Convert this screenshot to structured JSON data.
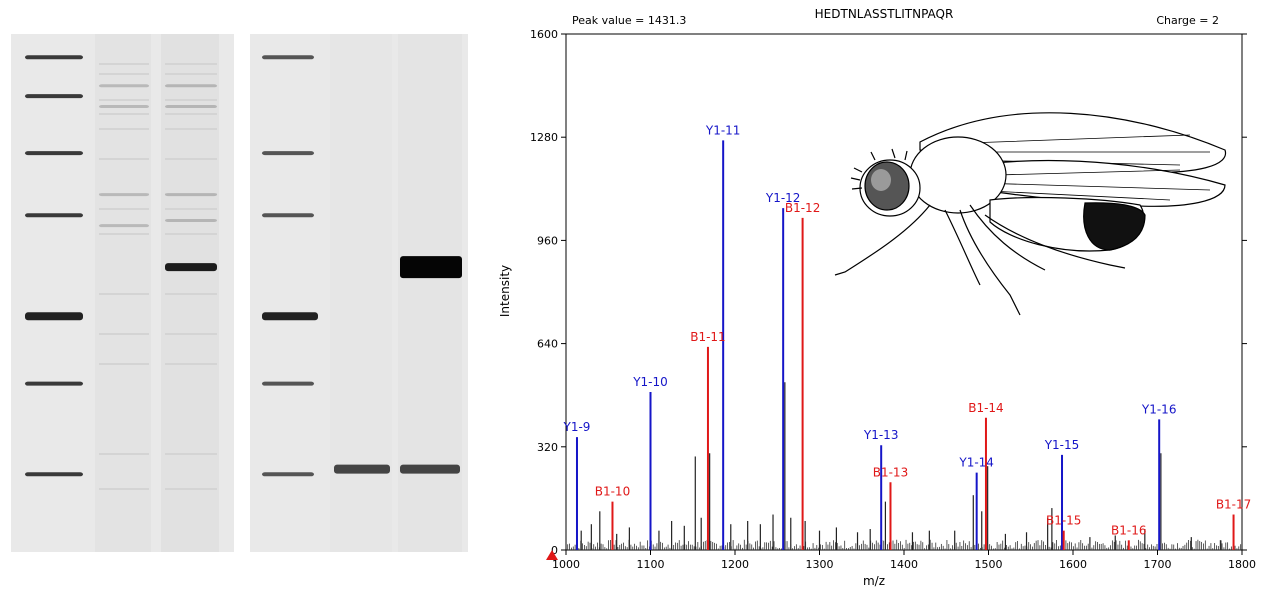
{
  "chart_data": {
    "type": "bar",
    "header": {
      "peak_value": "Peak value = 1431.3",
      "sequence": "HEDTNLASSTLITNPAQR",
      "charge": "Charge = 2"
    },
    "xlabel": "m/z",
    "ylabel": "Intensity",
    "xlim": [
      1000,
      1800
    ],
    "ylim": [
      0,
      1600
    ],
    "xticks": [
      "1000",
      "1100",
      "1200",
      "1300",
      "1400",
      "1500",
      "1600",
      "1700",
      "1800"
    ],
    "yticks": [
      "0",
      "320",
      "640",
      "960",
      "1280",
      "1600"
    ],
    "y_ions_color": "#1515c8",
    "b_ions_color": "#e01818",
    "series": [
      {
        "name": "Y ions",
        "peaks": [
          {
            "label": "Y1-9",
            "mz": 1013,
            "intensity": 350
          },
          {
            "label": "Y1-10",
            "mz": 1100,
            "intensity": 490
          },
          {
            "label": "Y1-11",
            "mz": 1186,
            "intensity": 1270
          },
          {
            "label": "Y1-12",
            "mz": 1257,
            "intensity": 1060
          },
          {
            "label": "Y1-13",
            "mz": 1373,
            "intensity": 325
          },
          {
            "label": "Y1-14",
            "mz": 1486,
            "intensity": 240
          },
          {
            "label": "Y1-15",
            "mz": 1587,
            "intensity": 295
          },
          {
            "label": "Y1-16",
            "mz": 1702,
            "intensity": 405
          }
        ]
      },
      {
        "name": "B ions",
        "peaks": [
          {
            "label": "B1-10",
            "mz": 1055,
            "intensity": 150
          },
          {
            "label": "B1-11",
            "mz": 1168,
            "intensity": 630
          },
          {
            "label": "B1-12",
            "mz": 1280,
            "intensity": 1030
          },
          {
            "label": "B1-13",
            "mz": 1384,
            "intensity": 210
          },
          {
            "label": "B1-14",
            "mz": 1497,
            "intensity": 410
          },
          {
            "label": "B1-15",
            "mz": 1589,
            "intensity": 60
          },
          {
            "label": "B1-16",
            "mz": 1666,
            "intensity": 30
          },
          {
            "label": "B1-17",
            "mz": 1790,
            "intensity": 110
          }
        ]
      }
    ],
    "noise_peaks": [
      {
        "mz": 1018,
        "intensity": 60
      },
      {
        "mz": 1030,
        "intensity": 80
      },
      {
        "mz": 1040,
        "intensity": 120
      },
      {
        "mz": 1060,
        "intensity": 50
      },
      {
        "mz": 1075,
        "intensity": 70
      },
      {
        "mz": 1110,
        "intensity": 60
      },
      {
        "mz": 1125,
        "intensity": 90
      },
      {
        "mz": 1140,
        "intensity": 75
      },
      {
        "mz": 1153,
        "intensity": 290
      },
      {
        "mz": 1160,
        "intensity": 100
      },
      {
        "mz": 1170,
        "intensity": 300
      },
      {
        "mz": 1195,
        "intensity": 80
      },
      {
        "mz": 1215,
        "intensity": 90
      },
      {
        "mz": 1230,
        "intensity": 80
      },
      {
        "mz": 1245,
        "intensity": 110
      },
      {
        "mz": 1259,
        "intensity": 520
      },
      {
        "mz": 1266,
        "intensity": 100
      },
      {
        "mz": 1283,
        "intensity": 90
      },
      {
        "mz": 1300,
        "intensity": 60
      },
      {
        "mz": 1320,
        "intensity": 70
      },
      {
        "mz": 1345,
        "intensity": 55
      },
      {
        "mz": 1360,
        "intensity": 65
      },
      {
        "mz": 1378,
        "intensity": 150
      },
      {
        "mz": 1410,
        "intensity": 55
      },
      {
        "mz": 1430,
        "intensity": 60
      },
      {
        "mz": 1460,
        "intensity": 60
      },
      {
        "mz": 1482,
        "intensity": 170
      },
      {
        "mz": 1492,
        "intensity": 120
      },
      {
        "mz": 1499,
        "intensity": 260
      },
      {
        "mz": 1520,
        "intensity": 50
      },
      {
        "mz": 1545,
        "intensity": 55
      },
      {
        "mz": 1570,
        "intensity": 100
      },
      {
        "mz": 1575,
        "intensity": 130
      },
      {
        "mz": 1620,
        "intensity": 40
      },
      {
        "mz": 1650,
        "intensity": 45
      },
      {
        "mz": 1685,
        "intensity": 65
      },
      {
        "mz": 1704,
        "intensity": 300
      },
      {
        "mz": 1740,
        "intensity": 40
      },
      {
        "mz": 1775,
        "intensity": 30
      }
    ]
  },
  "gels": {
    "left": {
      "ladder": [
        0.045,
        0.12,
        0.23,
        0.35,
        0.545,
        0.675,
        0.85
      ],
      "lane2_bands": [
        0.1,
        0.14,
        0.31,
        0.37
      ],
      "lane3_bands": [
        0.1,
        0.14,
        0.31,
        0.36,
        0.45
      ]
    },
    "right": {
      "ladder": [
        0.045,
        0.23,
        0.35,
        0.545,
        0.675,
        0.85
      ],
      "lane2_bands": [
        0.84
      ],
      "lane3_bands": [
        0.45,
        0.84
      ]
    }
  }
}
